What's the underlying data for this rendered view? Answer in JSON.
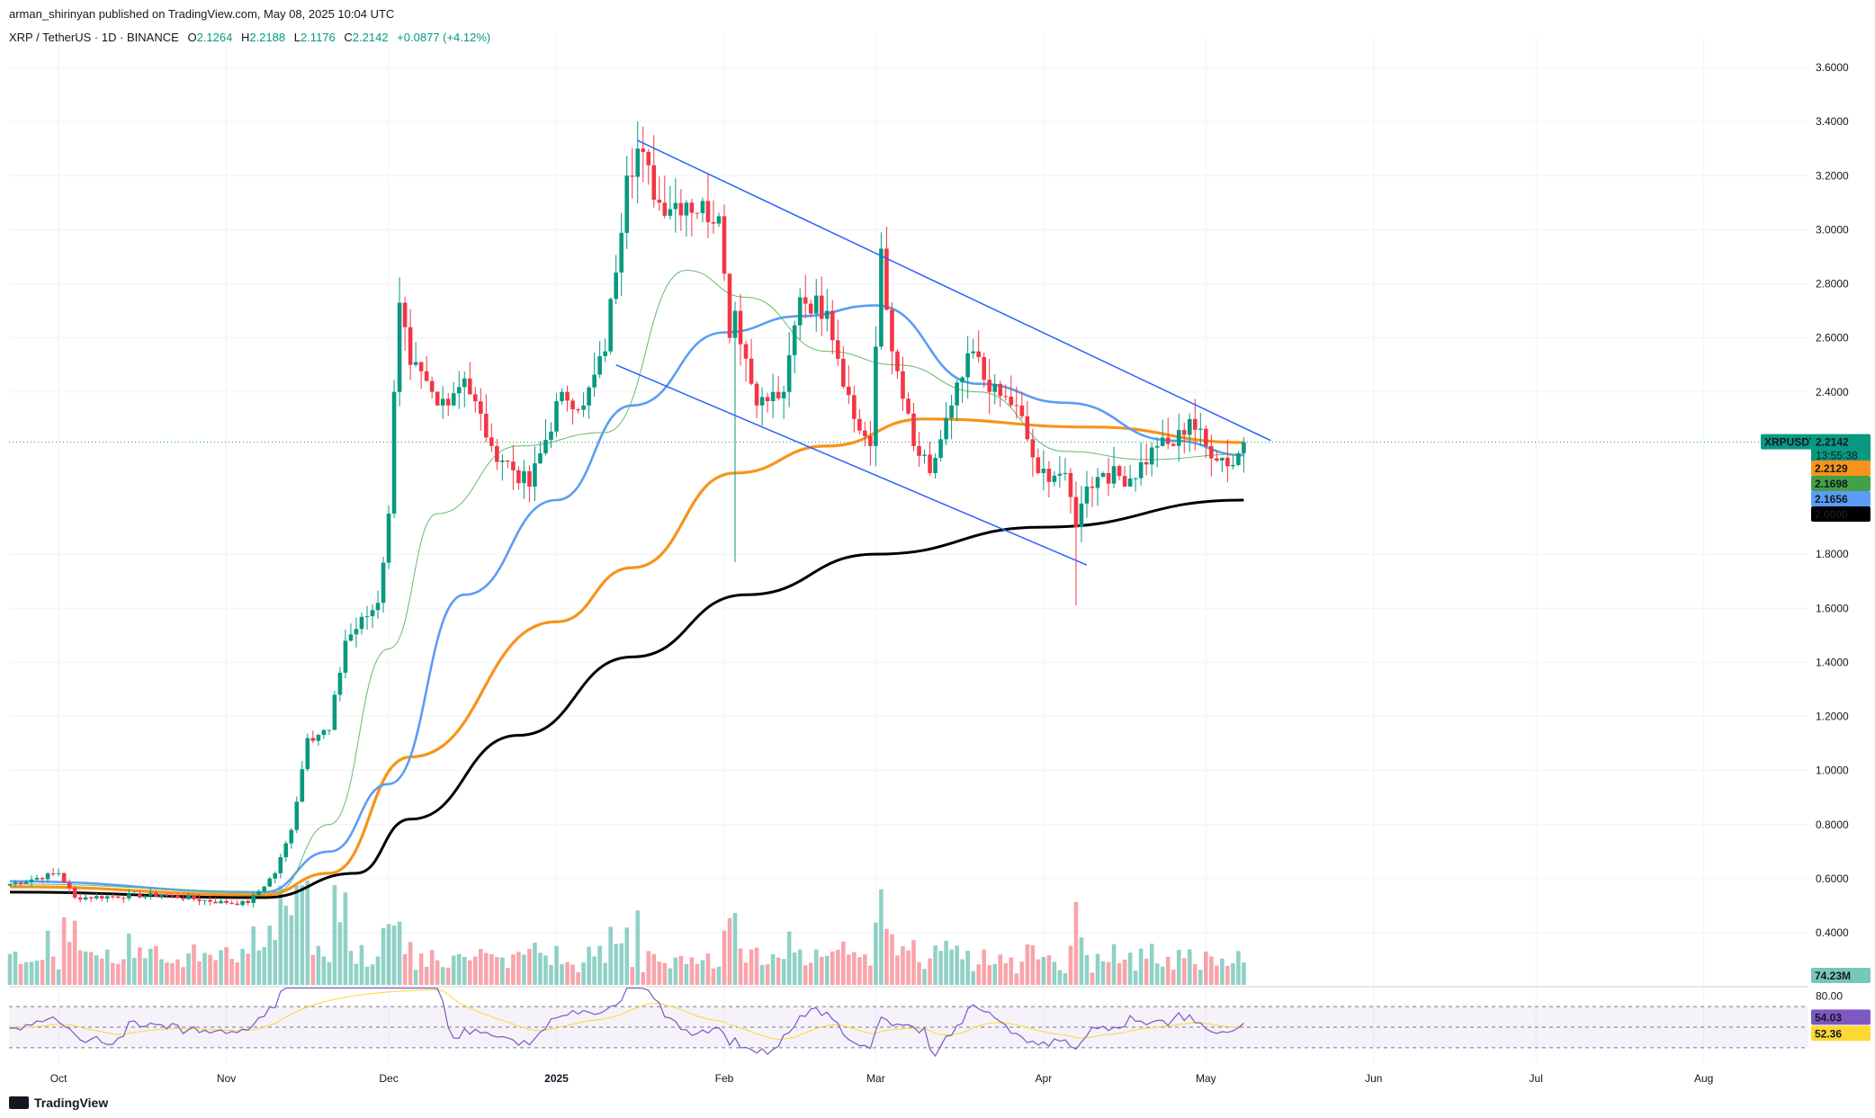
{
  "header": {
    "publisher": "arman_shirinyan published on TradingView.com, May 08, 2025 10:04 UTC"
  },
  "legend": {
    "symbol": "XRP / TetherUS · 1D · BINANCE",
    "o_label": "O",
    "o": "2.1264",
    "h_label": "H",
    "h": "2.2188",
    "l_label": "L",
    "l": "2.1176",
    "c_label": "C",
    "c": "2.2142",
    "change": "+0.0877 (+4.12%)"
  },
  "price_axis": {
    "ticks": [
      "3.6000",
      "3.4000",
      "3.2000",
      "3.0000",
      "2.8000",
      "2.6000",
      "2.4000",
      "1.8000",
      "1.6000",
      "1.4000",
      "1.2000",
      "1.0000",
      "0.8000",
      "0.6000",
      "0.4000"
    ],
    "tick_values": [
      3.6,
      3.4,
      3.2,
      3.0,
      2.8,
      2.6,
      2.4,
      1.8,
      1.6,
      1.4,
      1.2,
      1.0,
      0.8,
      0.6,
      0.4
    ]
  },
  "badges": {
    "symbol": "XRPUSDT",
    "price": "2.2142",
    "countdown": "13:55:38",
    "ma_orange": "2.2129",
    "ma_green": "2.1698",
    "ma_blue": "2.1656",
    "ma_black": "2.0000",
    "volume": "74.23M"
  },
  "rsi_axis": {
    "top": "80.00",
    "rsi": "54.03",
    "rsi_ma": "52.36"
  },
  "time_axis": [
    "Oct",
    "Nov",
    "Dec",
    "2025",
    "Feb",
    "Mar",
    "Apr",
    "May",
    "Jun",
    "Jul",
    "Aug"
  ],
  "footer": {
    "brand": "TradingView"
  },
  "colors": {
    "up": "#089981",
    "down": "#f23645",
    "ma_blue": "#5b9cf6",
    "ma_orange": "#f7931a",
    "ma_black": "#000000",
    "ma_green": "#66bb6a",
    "channel": "#2962ff",
    "rsi": "#7e57c2",
    "rsi_ma": "#fdd835"
  },
  "chart_data": {
    "type": "candlestick",
    "symbol": "XRP / TetherUS",
    "interval": "1D",
    "exchange": "BINANCE",
    "price_ylim": [
      0.25,
      3.75
    ],
    "anchors": [
      {
        "date": "2024-09-22",
        "close": 0.58
      },
      {
        "date": "2024-10-01",
        "close": 0.62
      },
      {
        "date": "2024-10-04",
        "close": 0.53
      },
      {
        "date": "2024-10-20",
        "close": 0.54
      },
      {
        "date": "2024-11-01",
        "close": 0.51
      },
      {
        "date": "2024-11-05",
        "close": 0.51
      },
      {
        "date": "2024-11-10",
        "close": 0.62
      },
      {
        "date": "2024-11-13",
        "close": 0.78
      },
      {
        "date": "2024-11-16",
        "close": 1.12
      },
      {
        "date": "2024-11-20",
        "close": 1.15
      },
      {
        "date": "2024-11-23",
        "close": 1.48
      },
      {
        "date": "2024-11-29",
        "close": 1.62
      },
      {
        "date": "2024-12-01",
        "close": 1.95
      },
      {
        "date": "2024-12-02",
        "close": 2.4
      },
      {
        "date": "2024-12-03",
        "close": 2.73
      },
      {
        "date": "2024-12-05",
        "close": 2.5
      },
      {
        "date": "2024-12-10",
        "close": 2.35
      },
      {
        "date": "2024-12-15",
        "close": 2.45
      },
      {
        "date": "2024-12-20",
        "close": 2.2
      },
      {
        "date": "2024-12-27",
        "close": 2.05
      },
      {
        "date": "2025-01-02",
        "close": 2.4
      },
      {
        "date": "2025-01-06",
        "close": 2.35
      },
      {
        "date": "2025-01-10",
        "close": 2.55
      },
      {
        "date": "2025-01-14",
        "close": 3.2
      },
      {
        "date": "2025-01-16",
        "close": 3.3
      },
      {
        "date": "2025-01-20",
        "close": 3.1
      },
      {
        "date": "2025-01-25",
        "close": 3.1
      },
      {
        "date": "2025-01-31",
        "close": 3.05
      },
      {
        "date": "2025-02-02",
        "close": 2.6
      },
      {
        "date": "2025-02-03",
        "close": 2.7
      },
      {
        "date": "2025-02-07",
        "close": 2.35
      },
      {
        "date": "2025-02-12",
        "close": 2.4
      },
      {
        "date": "2025-02-15",
        "close": 2.75
      },
      {
        "date": "2025-02-20",
        "close": 2.7
      },
      {
        "date": "2025-02-25",
        "close": 2.3
      },
      {
        "date": "2025-02-28",
        "close": 2.2
      },
      {
        "date": "2025-03-02",
        "close": 2.93
      },
      {
        "date": "2025-03-04",
        "close": 2.55
      },
      {
        "date": "2025-03-08",
        "close": 2.2
      },
      {
        "date": "2025-03-11",
        "close": 2.1
      },
      {
        "date": "2025-03-15",
        "close": 2.35
      },
      {
        "date": "2025-03-19",
        "close": 2.55
      },
      {
        "date": "2025-03-22",
        "close": 2.4
      },
      {
        "date": "2025-03-27",
        "close": 2.35
      },
      {
        "date": "2025-03-31",
        "close": 2.1
      },
      {
        "date": "2025-04-05",
        "close": 2.1
      },
      {
        "date": "2025-04-07",
        "close": 1.9
      },
      {
        "date": "2025-04-09",
        "close": 2.05
      },
      {
        "date": "2025-04-12",
        "close": 2.1
      },
      {
        "date": "2025-04-17",
        "close": 2.08
      },
      {
        "date": "2025-04-22",
        "close": 2.2
      },
      {
        "date": "2025-04-25",
        "close": 2.2
      },
      {
        "date": "2025-04-28",
        "close": 2.3
      },
      {
        "date": "2025-05-01",
        "close": 2.2
      },
      {
        "date": "2025-05-06",
        "close": 2.13
      },
      {
        "date": "2025-05-08",
        "close": 2.2142
      }
    ],
    "highlights": [
      {
        "date": "2025-01-16",
        "high": 3.4
      },
      {
        "date": "2025-03-02",
        "high": 2.99
      },
      {
        "date": "2025-02-03",
        "low": 1.77
      },
      {
        "date": "2025-04-07",
        "low": 1.61
      }
    ],
    "moving_averages": {
      "ma_black": [
        {
          "date": "2024-09-22",
          "value": 0.55
        },
        {
          "date": "2024-11-08",
          "value": 0.53
        },
        {
          "date": "2024-11-25",
          "value": 0.62
        },
        {
          "date": "2024-12-05",
          "value": 0.82
        },
        {
          "date": "2024-12-25",
          "value": 1.13
        },
        {
          "date": "2025-01-15",
          "value": 1.42
        },
        {
          "date": "2025-02-05",
          "value": 1.65
        },
        {
          "date": "2025-03-01",
          "value": 1.8
        },
        {
          "date": "2025-04-01",
          "value": 1.9
        },
        {
          "date": "2025-05-08",
          "value": 2.0
        }
      ],
      "ma_orange": [
        {
          "date": "2024-09-22",
          "value": 0.57
        },
        {
          "date": "2024-11-08",
          "value": 0.54
        },
        {
          "date": "2024-11-20",
          "value": 0.62
        },
        {
          "date": "2024-12-05",
          "value": 1.05
        },
        {
          "date": "2025-01-01",
          "value": 1.55
        },
        {
          "date": "2025-01-15",
          "value": 1.75
        },
        {
          "date": "2025-02-03",
          "value": 2.1
        },
        {
          "date": "2025-02-20",
          "value": 2.2
        },
        {
          "date": "2025-03-10",
          "value": 2.3
        },
        {
          "date": "2025-04-10",
          "value": 2.27
        },
        {
          "date": "2025-05-08",
          "value": 2.2129
        }
      ],
      "ma_blue": [
        {
          "date": "2024-09-22",
          "value": 0.59
        },
        {
          "date": "2024-11-08",
          "value": 0.55
        },
        {
          "date": "2024-11-20",
          "value": 0.7
        },
        {
          "date": "2024-12-01",
          "value": 0.95
        },
        {
          "date": "2024-12-15",
          "value": 1.65
        },
        {
          "date": "2025-01-01",
          "value": 2.0
        },
        {
          "date": "2025-01-15",
          "value": 2.35
        },
        {
          "date": "2025-02-01",
          "value": 2.62
        },
        {
          "date": "2025-02-15",
          "value": 2.68
        },
        {
          "date": "2025-03-01",
          "value": 2.72
        },
        {
          "date": "2025-03-20",
          "value": 2.43
        },
        {
          "date": "2025-04-05",
          "value": 2.36
        },
        {
          "date": "2025-04-25",
          "value": 2.22
        },
        {
          "date": "2025-05-08",
          "value": 2.1656
        }
      ],
      "ma_green": [
        {
          "date": "2024-09-22",
          "value": 0.58
        },
        {
          "date": "2024-11-10",
          "value": 0.55
        },
        {
          "date": "2024-11-20",
          "value": 0.8
        },
        {
          "date": "2024-12-01",
          "value": 1.45
        },
        {
          "date": "2024-12-10",
          "value": 1.95
        },
        {
          "date": "2024-12-25",
          "value": 2.2
        },
        {
          "date": "2025-01-10",
          "value": 2.25
        },
        {
          "date": "2025-01-25",
          "value": 2.85
        },
        {
          "date": "2025-02-05",
          "value": 2.75
        },
        {
          "date": "2025-02-20",
          "value": 2.55
        },
        {
          "date": "2025-03-05",
          "value": 2.5
        },
        {
          "date": "2025-03-20",
          "value": 2.4
        },
        {
          "date": "2025-04-05",
          "value": 2.18
        },
        {
          "date": "2025-04-20",
          "value": 2.15
        },
        {
          "date": "2025-05-08",
          "value": 2.1698
        }
      ]
    },
    "channel": {
      "upper": [
        {
          "date": "2025-01-16",
          "value": 3.33
        },
        {
          "date": "2025-05-13",
          "value": 2.22
        }
      ],
      "lower": [
        {
          "date": "2025-01-12",
          "value": 2.5
        },
        {
          "date": "2025-04-09",
          "value": 1.76
        }
      ]
    },
    "volume_last": 74230000,
    "rsi_last": 54.03,
    "rsi_ma_last": 52.36,
    "rsi_levels": [
      70,
      50,
      30
    ]
  }
}
